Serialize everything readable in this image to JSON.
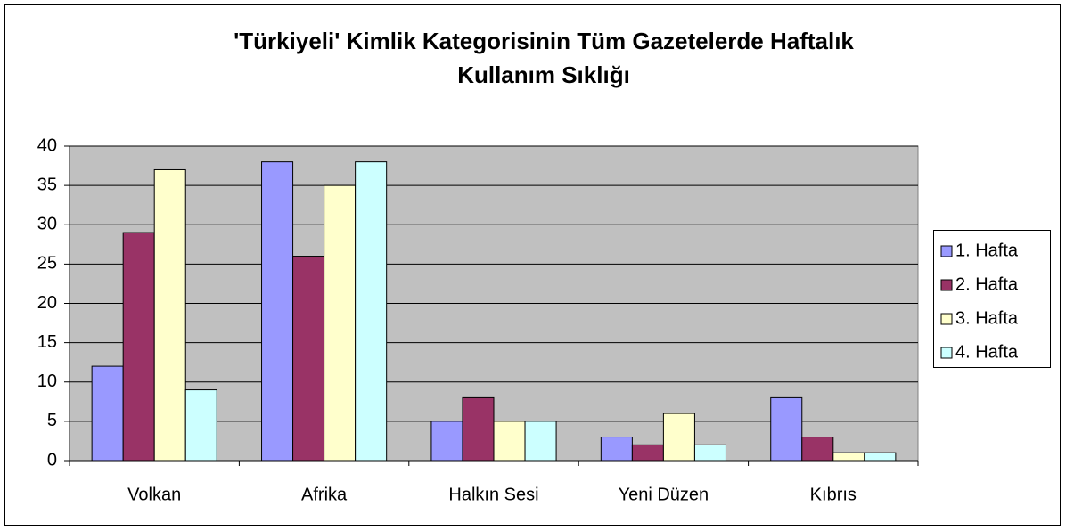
{
  "chart_data": {
    "type": "bar",
    "title": [
      "'Türkiyeli' Kimlik Kategorisinin Tüm Gazetelerde Haftalık",
      "Kullanım Sıklığı"
    ],
    "categories": [
      "Volkan",
      "Afrika",
      "Halkın Sesi",
      "Yeni Düzen",
      "Kıbrıs"
    ],
    "series": [
      {
        "name": "1. Hafta",
        "color": "#9999ff",
        "values": [
          12,
          38,
          5,
          3,
          8
        ]
      },
      {
        "name": "2. Hafta",
        "color": "#993366",
        "values": [
          29,
          26,
          8,
          2,
          3
        ]
      },
      {
        "name": "3. Hafta",
        "color": "#ffffcc",
        "values": [
          37,
          35,
          5,
          6,
          1
        ]
      },
      {
        "name": "4. Hafta",
        "color": "#ccffff",
        "values": [
          9,
          38,
          5,
          2,
          1
        ]
      }
    ],
    "ylim": [
      0,
      40
    ],
    "yticks": [
      0,
      5,
      10,
      15,
      20,
      25,
      30,
      35,
      40
    ],
    "grid": true,
    "legend": "right"
  }
}
